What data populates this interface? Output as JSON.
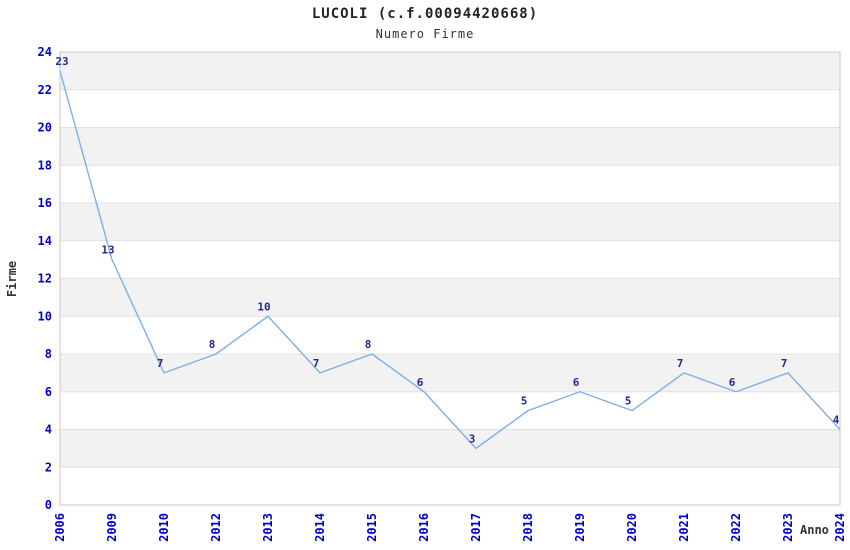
{
  "title": "LUCOLI (c.f.00094420668)",
  "subtitle": "Numero Firme",
  "chart_data": {
    "type": "line",
    "title": "LUCOLI (c.f.00094420668)",
    "subtitle": "Numero Firme",
    "xlabel": "Anno",
    "ylabel": "Firme",
    "categories": [
      "2006",
      "2009",
      "2010",
      "2012",
      "2013",
      "2014",
      "2015",
      "2016",
      "2017",
      "2018",
      "2019",
      "2020",
      "2021",
      "2022",
      "2023",
      "2024"
    ],
    "values": [
      23,
      13,
      7,
      8,
      10,
      7,
      8,
      6,
      3,
      5,
      6,
      5,
      7,
      6,
      7,
      4
    ],
    "ylim": [
      0,
      24
    ],
    "ytick_step": 2,
    "grid": true,
    "legend": "none",
    "colors": {
      "line": "#7cb0e8",
      "tick_labels": "#0000cc",
      "data_labels": "#26268c",
      "axis_titles": "#333333",
      "band_fill": "#f2f2f2",
      "grid_line": "#e2e2e2",
      "plot_border": "#c8c8c8"
    }
  }
}
